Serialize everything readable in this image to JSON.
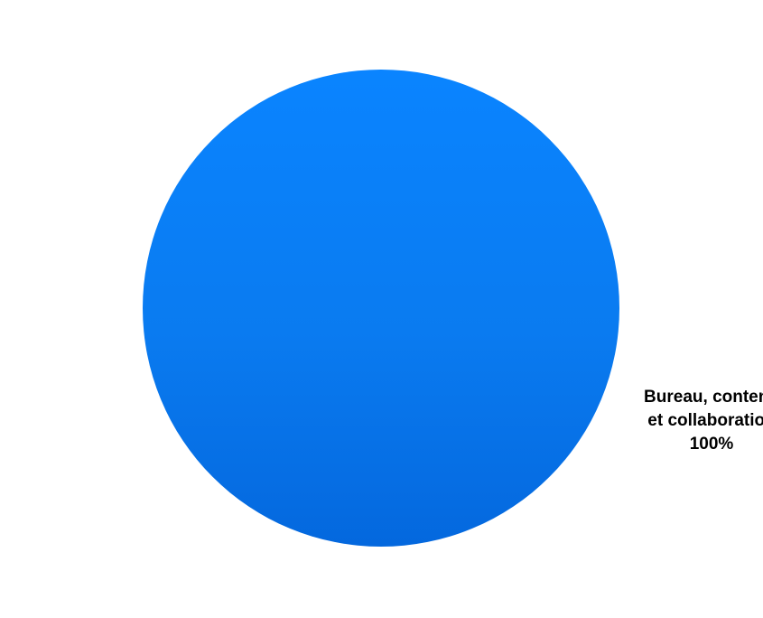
{
  "chart_data": {
    "type": "pie",
    "title": "",
    "slices": [
      {
        "label_lines": [
          "Bureau, contenu",
          "et collaboration"
        ],
        "value": 100,
        "value_label": "100%",
        "color": "#0a7ff5"
      }
    ],
    "legend": "none",
    "labels": "outside-right"
  }
}
